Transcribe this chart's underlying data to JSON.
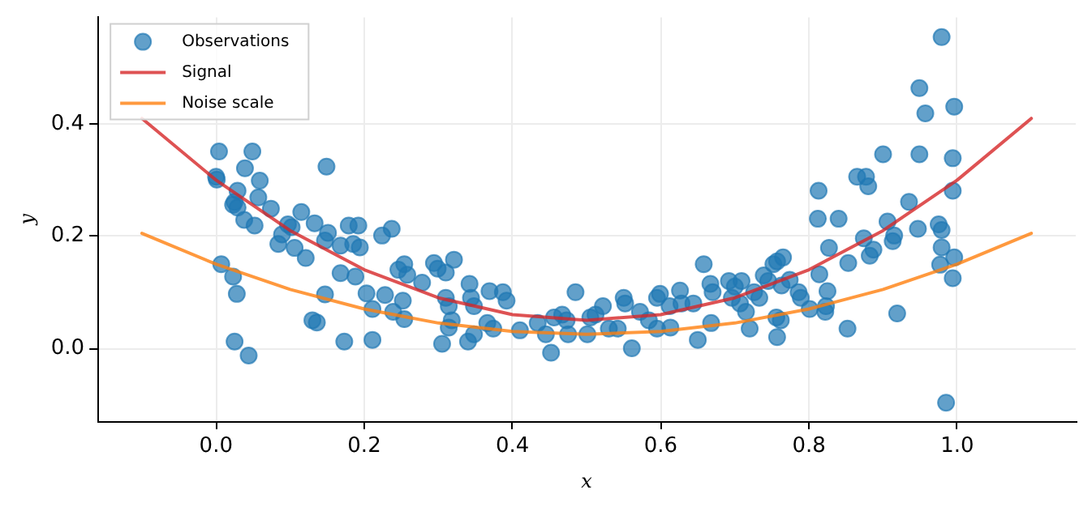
{
  "chart_data": {
    "type": "scatter",
    "xlabel": "x",
    "ylabel": "y",
    "xlim": [
      -0.16,
      1.16
    ],
    "ylim": [
      -0.13,
      0.59
    ],
    "xticks": [
      {
        "value": 0,
        "label": "0.0"
      },
      {
        "value": 0.2,
        "label": "0.2"
      },
      {
        "value": 0.4,
        "label": "0.4"
      },
      {
        "value": 0.6,
        "label": "0.6"
      },
      {
        "value": 0.8,
        "label": "0.8"
      },
      {
        "value": 1,
        "label": "1.0"
      }
    ],
    "yticks": [
      {
        "value": 0,
        "label": "0.0"
      },
      {
        "value": 0.2,
        "label": "0.2"
      },
      {
        "value": 0.4,
        "label": "0.4"
      }
    ],
    "grid": true,
    "legend": "top left",
    "marker": "circle",
    "series": [
      {
        "name": "Observations",
        "color": "#1f77b4",
        "x": [
          0.004,
          0.049,
          0.039,
          0,
          0.001,
          0.059,
          0.149,
          0.029,
          0.057,
          0.025,
          0.023,
          0.029,
          0.074,
          0.038,
          0.052,
          0.115,
          0.097,
          0.102,
          0.133,
          0.089,
          0.084,
          0.106,
          0.121,
          0.147,
          0.151,
          0.168,
          0.179,
          0.192,
          0.185,
          0.194,
          0.237,
          0.224,
          0.007,
          0.023,
          0.028,
          0.147,
          0.168,
          0.188,
          0.246,
          0.254,
          0.258,
          0.203,
          0.228,
          0.211,
          0.239,
          0.252,
          0.254,
          0.13,
          0.136,
          0.025,
          0.044,
          0.173,
          0.211,
          0.294,
          0.299,
          0.31,
          0.321,
          0.278,
          0.31,
          0.314,
          0.342,
          0.344,
          0.348,
          0.369,
          0.387,
          0.392,
          0.318,
          0.314,
          0.305,
          0.34,
          0.348,
          0.366,
          0.374,
          0.41,
          0.434,
          0.445,
          0.452,
          0.456,
          0.467,
          0.473,
          0.475,
          0.485,
          0.501,
          0.505,
          0.512,
          0.522,
          0.53,
          0.542,
          0.55,
          0.552,
          0.561,
          0.572,
          0.584,
          0.595,
          0.599,
          0.595,
          0.612,
          0.613,
          0.626,
          0.628,
          0.644,
          0.65,
          0.658,
          0.667,
          0.67,
          0.668,
          0.692,
          0.7,
          0.709,
          0.696,
          0.707,
          0.715,
          0.72,
          0.726,
          0.733,
          0.739,
          0.745,
          0.752,
          0.757,
          0.765,
          0.756,
          0.762,
          0.757,
          0.763,
          0.774,
          0.786,
          0.789,
          0.801,
          0.813,
          0.812,
          0.814,
          0.825,
          0.823,
          0.822,
          0.827,
          0.84,
          0.853,
          0.852,
          0.865,
          0.877,
          0.88,
          0.874,
          0.882,
          0.887,
          0.9,
          0.906,
          0.913,
          0.915,
          0.919,
          0.935,
          0.947,
          0.949,
          0.949,
          0.957,
          0.979,
          0.975,
          0.979,
          0.979,
          0.977,
          0.985,
          0.994,
          0.996,
          0.994,
          0.996,
          0.994
        ],
        "values": [
          0.351,
          0.351,
          0.321,
          0.306,
          0.301,
          0.299,
          0.324,
          0.281,
          0.269,
          0.261,
          0.256,
          0.251,
          0.249,
          0.229,
          0.219,
          0.243,
          0.221,
          0.216,
          0.223,
          0.203,
          0.186,
          0.179,
          0.161,
          0.192,
          0.206,
          0.183,
          0.219,
          0.219,
          0.186,
          0.18,
          0.213,
          0.201,
          0.15,
          0.128,
          0.097,
          0.096,
          0.134,
          0.128,
          0.14,
          0.15,
          0.131,
          0.098,
          0.095,
          0.07,
          0.065,
          0.085,
          0.052,
          0.05,
          0.046,
          0.012,
          -0.013,
          0.012,
          0.015,
          0.152,
          0.142,
          0.135,
          0.158,
          0.117,
          0.09,
          0.075,
          0.115,
          0.09,
          0.075,
          0.102,
          0.1,
          0.085,
          0.05,
          0.037,
          0.008,
          0.012,
          0.025,
          0.045,
          0.035,
          0.032,
          0.045,
          0.025,
          -0.008,
          0.055,
          0.06,
          0.05,
          0.025,
          0.1,
          0.025,
          0.055,
          0.06,
          0.075,
          0.035,
          0.035,
          0.09,
          0.08,
          0,
          0.065,
          0.05,
          0.09,
          0.097,
          0.035,
          0.075,
          0.037,
          0.103,
          0.08,
          0.08,
          0.015,
          0.15,
          0.115,
          0.1,
          0.045,
          0.12,
          0.11,
          0.12,
          0.09,
          0.08,
          0.065,
          0.035,
          0.1,
          0.09,
          0.13,
          0.12,
          0.15,
          0.155,
          0.162,
          0.055,
          0.05,
          0.02,
          0.112,
          0.122,
          0.1,
          0.09,
          0.07,
          0.281,
          0.231,
          0.132,
          0.102,
          0.075,
          0.065,
          0.179,
          0.231,
          0.152,
          0.035,
          0.306,
          0.306,
          0.289,
          0.196,
          0.165,
          0.176,
          0.346,
          0.226,
          0.191,
          0.201,
          0.062,
          0.261,
          0.213,
          0.464,
          0.346,
          0.419,
          0.555,
          0.221,
          0.211,
          0.18,
          0.149,
          -0.097,
          0.339,
          0.431,
          0.281,
          0.162,
          0.125
        ]
      },
      {
        "name": "Signal",
        "type": "line",
        "color": "#d62728",
        "marker": "none",
        "line_style": "solid",
        "x": [
          -0.1,
          0,
          0.1,
          0.2,
          0.3,
          0.4,
          0.5,
          0.6,
          0.7,
          0.8,
          0.9,
          1,
          1.1
        ],
        "values": [
          0.41,
          0.3,
          0.21,
          0.14,
          0.09,
          0.06,
          0.05,
          0.06,
          0.09,
          0.14,
          0.21,
          0.3,
          0.41
        ]
      },
      {
        "name": "Noise scale",
        "type": "line",
        "color": "#ff7f0e",
        "marker": "none",
        "line_style": "solid",
        "x": [
          -0.1,
          0,
          0.1,
          0.2,
          0.3,
          0.4,
          0.5,
          0.6,
          0.7,
          0.8,
          0.9,
          1,
          1.1
        ],
        "values": [
          0.205,
          0.15,
          0.105,
          0.07,
          0.045,
          0.03,
          0.025,
          0.03,
          0.045,
          0.07,
          0.105,
          0.15,
          0.205
        ]
      }
    ]
  }
}
